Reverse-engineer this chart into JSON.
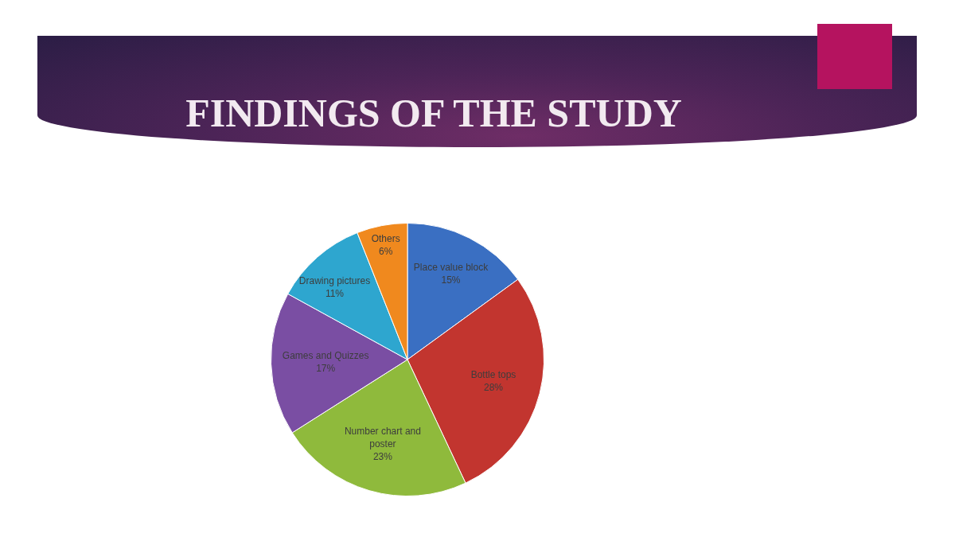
{
  "chart_data": {
    "type": "pie",
    "title": "FINDINGS OF THE STUDY",
    "categories": [
      "Place value block",
      "Bottle tops",
      "Number chart and poster",
      "Games and Quizzes",
      "Drawing pictures",
      "Others"
    ],
    "values": [
      15,
      28,
      23,
      17,
      11,
      6
    ],
    "value_labels": [
      "15%",
      "28%",
      "23%",
      "17%",
      "11%",
      "6%"
    ],
    "colors": [
      "#3a6fc2",
      "#c2352f",
      "#8fba3c",
      "#7a4ea3",
      "#2ea6cf",
      "#f0891e"
    ]
  }
}
